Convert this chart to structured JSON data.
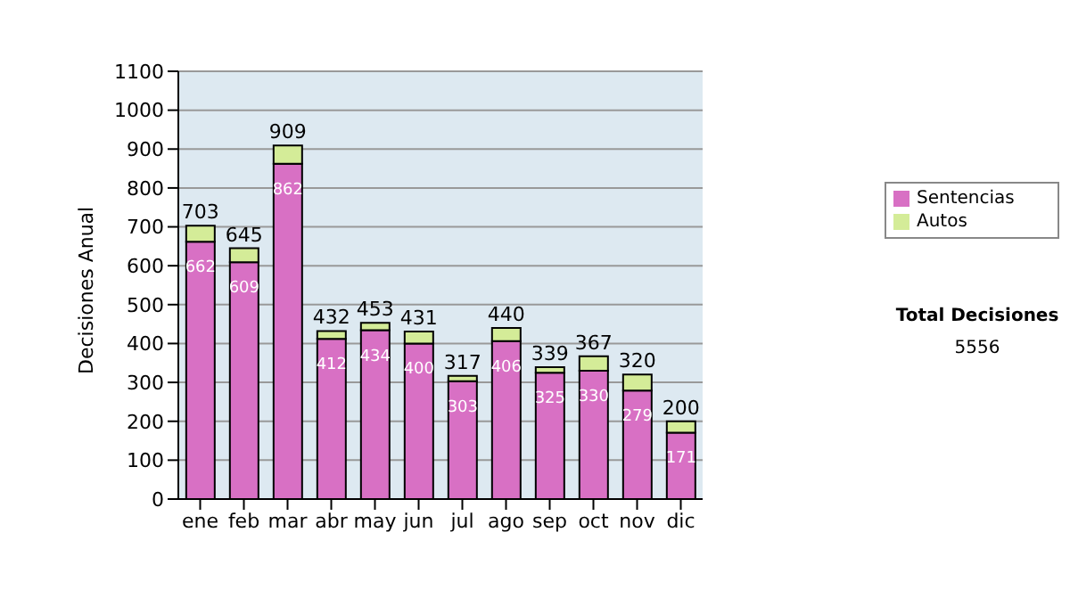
{
  "chart_data": {
    "type": "bar",
    "stacked": true,
    "ylabel": "Decisiones Anual",
    "categories": [
      "ene",
      "feb",
      "mar",
      "abr",
      "may",
      "jun",
      "jul",
      "ago",
      "sep",
      "oct",
      "nov",
      "dic"
    ],
    "series": [
      {
        "name": "Sentencias",
        "color": "#d870c4",
        "values": [
          662,
          609,
          862,
          412,
          434,
          400,
          303,
          406,
          325,
          330,
          279,
          171
        ],
        "value_labels": [
          "662",
          "609",
          "862",
          "412",
          "434",
          "400",
          "303",
          "406",
          "325",
          "330",
          "279",
          "171"
        ]
      },
      {
        "name": "Autos",
        "color": "#d4ec98",
        "values": [
          41,
          36,
          47,
          20,
          19,
          31,
          14,
          34,
          14,
          37,
          41,
          29
        ]
      }
    ],
    "totals": [
      "703",
      "645",
      "909",
      "432",
      "453",
      "431",
      "317",
      "440",
      "339",
      "367",
      "320",
      "200"
    ],
    "ylim": [
      0,
      1100
    ],
    "yticks": [
      0,
      100,
      200,
      300,
      400,
      500,
      600,
      700,
      800,
      900,
      1000,
      1100
    ],
    "grid": "y",
    "legend": "right",
    "annotations": [
      "Total Decisiones",
      "5556"
    ]
  }
}
